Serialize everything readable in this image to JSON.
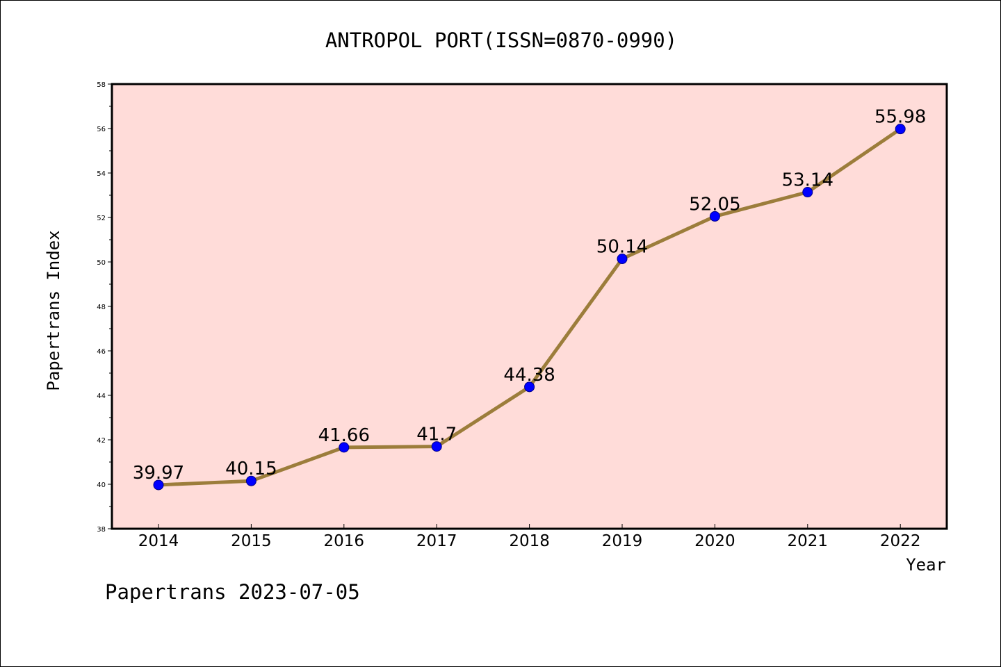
{
  "chart_data": {
    "type": "line",
    "title": "ANTROPOL PORT(ISSN=0870-0990)",
    "xlabel": "Year",
    "ylabel": "Papertrans Index",
    "categories": [
      "2014",
      "2015",
      "2016",
      "2017",
      "2018",
      "2019",
      "2020",
      "2021",
      "2022"
    ],
    "series": [
      {
        "values": [
          39.97,
          40.15,
          41.66,
          41.7,
          44.38,
          50.14,
          52.05,
          53.14,
          55.98
        ],
        "labels": [
          "39.97",
          "40.15",
          "41.66",
          "41.7",
          "44.38",
          "50.14",
          "52.05",
          "53.14",
          "55.98"
        ]
      }
    ],
    "ylim": [
      38,
      58
    ],
    "yticks": [
      "38",
      "40",
      "42",
      "44",
      "46",
      "48",
      "50",
      "52",
      "54",
      "56",
      "58"
    ],
    "grid": false,
    "legend": "none",
    "colors": {
      "plot_background": "#ffdcd9",
      "line": "#9c7d3b",
      "marker": "#0000ff",
      "axis": "#000000"
    }
  },
  "footer": {
    "note": "Papertrans 2023-07-05"
  }
}
